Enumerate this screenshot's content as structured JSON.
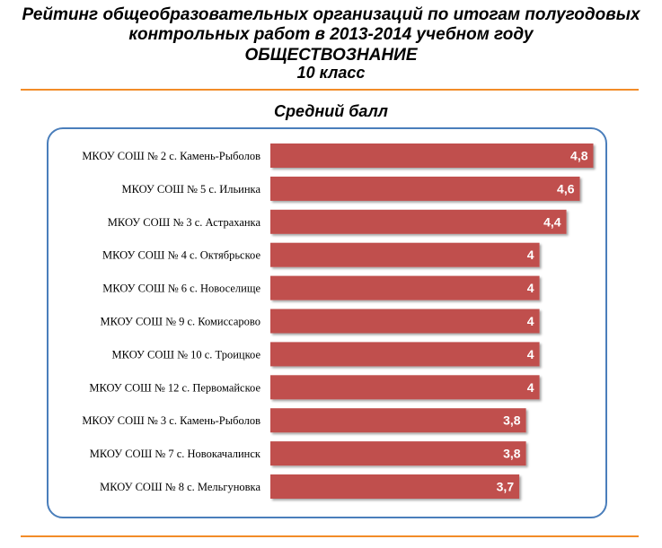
{
  "header": {
    "title_line1": "Рейтинг общеобразовательных  организаций по итогам полугодовых",
    "title_line2": "контрольных работ в 2013-2014 учебном году",
    "subject": "ОБЩЕСТВОЗНАНИЕ",
    "grade": "10 класс"
  },
  "chart_data": {
    "type": "bar",
    "orientation": "horizontal",
    "title": "Средний балл",
    "categories": [
      "МКОУ СОШ № 2 с. Камень-Рыболов",
      "МКОУ СОШ № 5 с. Ильинка",
      "МКОУ СОШ № 3 с. Астраханка",
      "МКОУ СОШ № 4 с. Октябрьское",
      "МКОУ СОШ № 6 с. Новоселище",
      "МКОУ СОШ № 9 с. Комиссарово",
      "МКОУ СОШ № 10 с. Троицкое",
      "МКОУ СОШ № 12 с. Первомайское",
      "МКОУ СОШ № 3 с. Камень-Рыболов",
      "МКОУ СОШ № 7 с. Новокачалинск",
      "МКОУ СОШ № 8 с. Мельгуновка"
    ],
    "values": [
      4.8,
      4.6,
      4.4,
      4,
      4,
      4,
      4,
      4,
      3.8,
      3.8,
      3.7
    ],
    "value_labels": [
      "4,8",
      "4,6",
      "4,4",
      "4",
      "4",
      "4",
      "4",
      "4",
      "3,8",
      "3,8",
      "3,7"
    ],
    "bar_color": "#c0504d",
    "grid": false,
    "legend": "none"
  },
  "colors": {
    "accent_rule": "#f28c28",
    "frame_border": "#4a7ebb"
  }
}
